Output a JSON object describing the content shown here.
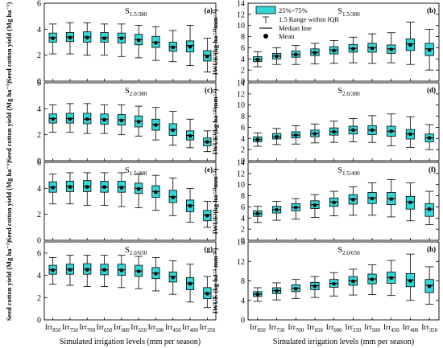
{
  "chart_data": [
    {
      "type": "box",
      "id": "a",
      "panel_label": "(a)",
      "scenario_label": "S",
      "scenario_sub": "1.5/380",
      "ylabel": "Seed cotton  yield  (Mg ha⁻¹)",
      "ylim": [
        0,
        6
      ],
      "yticks": [
        0,
        2,
        4,
        6
      ],
      "categories": [
        "Irr850",
        "Irr750",
        "Irr700",
        "Irr650",
        "Irr600",
        "Irr550",
        "Irr500",
        "Irr450",
        "Irr400",
        "Irr350"
      ],
      "boxes": [
        {
          "min": 2.1,
          "q1": 3.0,
          "median": 3.35,
          "q3": 3.7,
          "max": 4.4,
          "mean": 3.3
        },
        {
          "min": 2.1,
          "q1": 3.05,
          "median": 3.4,
          "q3": 3.75,
          "max": 4.5,
          "mean": 3.35
        },
        {
          "min": 2.0,
          "q1": 3.0,
          "median": 3.4,
          "q3": 3.8,
          "max": 4.5,
          "mean": 3.35
        },
        {
          "min": 2.0,
          "q1": 3.0,
          "median": 3.35,
          "q3": 3.75,
          "max": 4.4,
          "mean": 3.3
        },
        {
          "min": 1.9,
          "q1": 2.95,
          "median": 3.35,
          "q3": 3.7,
          "max": 4.4,
          "mean": 3.3
        },
        {
          "min": 1.8,
          "q1": 2.8,
          "median": 3.2,
          "q3": 3.6,
          "max": 4.3,
          "mean": 3.15
        },
        {
          "min": 1.6,
          "q1": 2.6,
          "median": 3.0,
          "q3": 3.45,
          "max": 4.2,
          "mean": 2.95
        },
        {
          "min": 1.5,
          "q1": 2.3,
          "median": 2.65,
          "q3": 3.0,
          "max": 3.9,
          "mean": 2.6
        },
        {
          "min": 1.2,
          "q1": 2.25,
          "median": 2.75,
          "q3": 3.1,
          "max": 4.3,
          "mean": 2.65
        },
        {
          "min": 0.7,
          "q1": 1.55,
          "median": 2.0,
          "q3": 2.35,
          "max": 3.3,
          "mean": 1.9
        }
      ]
    },
    {
      "type": "box",
      "id": "b",
      "panel_label": "(b)",
      "scenario_label": "S",
      "scenario_sub": "1.5/380",
      "ylabel": "IWUE  (kg ha⁻¹ mm⁻¹)",
      "ylim": [
        0,
        14
      ],
      "yticks": [
        0,
        2,
        4,
        6,
        8,
        10,
        12,
        14
      ],
      "categories": [
        "Irr850",
        "Irr750",
        "Irr700",
        "Irr650",
        "Irr600",
        "Irr550",
        "Irr500",
        "Irr450",
        "Irr400",
        "Irr350"
      ],
      "boxes": [
        {
          "min": 2.6,
          "q1": 3.5,
          "median": 3.9,
          "q3": 4.4,
          "max": 5.3,
          "mean": 3.9
        },
        {
          "min": 3.0,
          "q1": 4.0,
          "median": 4.5,
          "q3": 5.0,
          "max": 6.0,
          "mean": 4.5
        },
        {
          "min": 3.0,
          "q1": 4.3,
          "median": 4.8,
          "q3": 5.4,
          "max": 6.4,
          "mean": 4.8
        },
        {
          "min": 3.1,
          "q1": 4.6,
          "median": 5.2,
          "q3": 5.8,
          "max": 6.8,
          "mean": 5.1
        },
        {
          "min": 3.2,
          "q1": 4.9,
          "median": 5.6,
          "q3": 6.2,
          "max": 7.3,
          "mean": 5.5
        },
        {
          "min": 3.3,
          "q1": 5.2,
          "median": 5.9,
          "q3": 6.6,
          "max": 7.9,
          "mean": 5.8
        },
        {
          "min": 3.2,
          "q1": 5.2,
          "median": 6.0,
          "q3": 6.8,
          "max": 8.5,
          "mean": 5.9
        },
        {
          "min": 3.3,
          "q1": 5.0,
          "median": 5.8,
          "q3": 6.5,
          "max": 8.7,
          "mean": 5.7
        },
        {
          "min": 3.0,
          "q1": 5.5,
          "median": 6.7,
          "q3": 7.6,
          "max": 10.6,
          "mean": 6.5
        },
        {
          "min": 2.0,
          "q1": 4.6,
          "median": 5.8,
          "q3": 6.8,
          "max": 9.3,
          "mean": 5.6
        }
      ]
    },
    {
      "type": "box",
      "id": "c",
      "panel_label": "(c)",
      "scenario_label": "S",
      "scenario_sub": "2.0/380",
      "ylabel": "Seed cotton  yield  (Mg ha⁻¹)",
      "ylim": [
        0,
        6
      ],
      "yticks": [
        0,
        2,
        4,
        6
      ],
      "categories": [
        "Irr850",
        "Irr750",
        "Irr700",
        "Irr650",
        "Irr600",
        "Irr550",
        "Irr500",
        "Irr450",
        "Irr400",
        "Irr350"
      ],
      "boxes": [
        {
          "min": 2.2,
          "q1": 2.9,
          "median": 3.25,
          "q3": 3.6,
          "max": 4.3,
          "mean": 3.2
        },
        {
          "min": 2.2,
          "q1": 2.9,
          "median": 3.25,
          "q3": 3.65,
          "max": 4.4,
          "mean": 3.2
        },
        {
          "min": 2.1,
          "q1": 2.85,
          "median": 3.2,
          "q3": 3.65,
          "max": 4.4,
          "mean": 3.2
        },
        {
          "min": 2.1,
          "q1": 2.8,
          "median": 3.2,
          "q3": 3.6,
          "max": 4.3,
          "mean": 3.15
        },
        {
          "min": 2.0,
          "q1": 2.75,
          "median": 3.15,
          "q3": 3.55,
          "max": 4.3,
          "mean": 3.1
        },
        {
          "min": 1.9,
          "q1": 2.6,
          "median": 3.05,
          "q3": 3.45,
          "max": 4.2,
          "mean": 3.0
        },
        {
          "min": 1.6,
          "q1": 2.35,
          "median": 2.8,
          "q3": 3.2,
          "max": 4.1,
          "mean": 2.75
        },
        {
          "min": 1.2,
          "q1": 1.95,
          "median": 2.4,
          "q3": 2.85,
          "max": 3.8,
          "mean": 2.35
        },
        {
          "min": 1.0,
          "q1": 1.6,
          "median": 1.95,
          "q3": 2.3,
          "max": 3.2,
          "mean": 1.9
        },
        {
          "min": 0.7,
          "q1": 1.15,
          "median": 1.45,
          "q3": 1.75,
          "max": 2.3,
          "mean": 1.45
        }
      ]
    },
    {
      "type": "box",
      "id": "d",
      "panel_label": "(d)",
      "scenario_label": "S",
      "scenario_sub": "2.0/380",
      "ylabel": "IWUE  (kg ha⁻¹ mm⁻¹)",
      "ylim": [
        0,
        14
      ],
      "yticks": [
        0,
        2,
        4,
        6,
        8,
        10,
        12,
        14
      ],
      "categories": [
        "Irr850",
        "Irr750",
        "Irr700",
        "Irr650",
        "Irr600",
        "Irr550",
        "Irr500",
        "Irr450",
        "Irr400",
        "Irr350"
      ],
      "boxes": [
        {
          "min": 2.6,
          "q1": 3.4,
          "median": 3.8,
          "q3": 4.3,
          "max": 5.0,
          "mean": 3.8
        },
        {
          "min": 2.9,
          "q1": 3.9,
          "median": 4.3,
          "q3": 4.9,
          "max": 5.8,
          "mean": 4.3
        },
        {
          "min": 3.0,
          "q1": 4.1,
          "median": 4.6,
          "q3": 5.2,
          "max": 6.3,
          "mean": 4.6
        },
        {
          "min": 3.2,
          "q1": 4.3,
          "median": 4.9,
          "q3": 5.5,
          "max": 6.6,
          "mean": 4.85
        },
        {
          "min": 3.3,
          "q1": 4.6,
          "median": 5.2,
          "q3": 5.9,
          "max": 7.1,
          "mean": 5.2
        },
        {
          "min": 3.4,
          "q1": 4.8,
          "median": 5.5,
          "q3": 6.2,
          "max": 7.6,
          "mean": 5.5
        },
        {
          "min": 3.3,
          "q1": 4.7,
          "median": 5.5,
          "q3": 6.3,
          "max": 8.1,
          "mean": 5.5
        },
        {
          "min": 2.7,
          "q1": 4.4,
          "median": 5.3,
          "q3": 6.2,
          "max": 8.4,
          "mean": 5.3
        },
        {
          "min": 2.4,
          "q1": 3.9,
          "median": 4.8,
          "q3": 5.6,
          "max": 7.9,
          "mean": 4.8
        },
        {
          "min": 2.0,
          "q1": 3.4,
          "median": 4.1,
          "q3": 4.8,
          "max": 6.5,
          "mean": 4.1
        }
      ]
    },
    {
      "type": "box",
      "id": "e",
      "panel_label": "(e)",
      "scenario_label": "S",
      "scenario_sub": "1.5/490",
      "ylabel": "Seed cotton  yield  (Mg ha⁻¹)",
      "ylim": [
        0,
        6
      ],
      "yticks": [
        0,
        2,
        4,
        6
      ],
      "categories": [
        "Irr850",
        "Irr750",
        "Irr700",
        "Irr650",
        "Irr600",
        "Irr550",
        "Irr500",
        "Irr450",
        "Irr400",
        "Irr350"
      ],
      "boxes": [
        {
          "min": 2.8,
          "q1": 3.7,
          "median": 4.1,
          "q3": 4.5,
          "max": 5.1,
          "mean": 4.05
        },
        {
          "min": 2.8,
          "q1": 3.75,
          "median": 4.15,
          "q3": 4.55,
          "max": 5.2,
          "mean": 4.1
        },
        {
          "min": 2.7,
          "q1": 3.75,
          "median": 4.15,
          "q3": 4.6,
          "max": 5.2,
          "mean": 4.1
        },
        {
          "min": 2.7,
          "q1": 3.7,
          "median": 4.1,
          "q3": 4.55,
          "max": 5.2,
          "mean": 4.1
        },
        {
          "min": 2.6,
          "q1": 3.7,
          "median": 4.1,
          "q3": 4.55,
          "max": 5.2,
          "mean": 4.05
        },
        {
          "min": 2.5,
          "q1": 3.6,
          "median": 4.0,
          "q3": 4.4,
          "max": 5.1,
          "mean": 3.95
        },
        {
          "min": 2.3,
          "q1": 3.3,
          "median": 3.75,
          "q3": 4.2,
          "max": 5.0,
          "mean": 3.7
        },
        {
          "min": 1.9,
          "q1": 2.9,
          "median": 3.35,
          "q3": 3.85,
          "max": 4.8,
          "mean": 3.3
        },
        {
          "min": 1.4,
          "q1": 2.2,
          "median": 2.7,
          "q3": 3.1,
          "max": 4.0,
          "mean": 2.65
        },
        {
          "min": 1.0,
          "q1": 1.5,
          "median": 1.95,
          "q3": 2.3,
          "max": 3.0,
          "mean": 1.9
        }
      ]
    },
    {
      "type": "box",
      "id": "f",
      "panel_label": "(f)",
      "scenario_label": "S",
      "scenario_sub": "1.5/490",
      "ylabel": "IWUE  (kg ha⁻¹ mm⁻¹)",
      "ylim": [
        0,
        14
      ],
      "yticks": [
        0,
        2,
        4,
        6,
        8,
        10,
        12,
        14
      ],
      "categories": [
        "Irr850",
        "Irr750",
        "Irr700",
        "Irr650",
        "Irr600",
        "Irr550",
        "Irr500",
        "Irr450",
        "Irr400",
        "Irr350"
      ],
      "boxes": [
        {
          "min": 3.2,
          "q1": 4.3,
          "median": 4.8,
          "q3": 5.3,
          "max": 6.1,
          "mean": 4.8
        },
        {
          "min": 3.6,
          "q1": 4.9,
          "median": 5.5,
          "q3": 6.1,
          "max": 7.0,
          "mean": 5.5
        },
        {
          "min": 3.8,
          "q1": 5.3,
          "median": 5.9,
          "q3": 6.6,
          "max": 7.5,
          "mean": 5.9
        },
        {
          "min": 4.1,
          "q1": 5.7,
          "median": 6.4,
          "q3": 7.1,
          "max": 8.2,
          "mean": 6.3
        },
        {
          "min": 4.4,
          "q1": 6.1,
          "median": 6.9,
          "q3": 7.6,
          "max": 8.8,
          "mean": 6.8
        },
        {
          "min": 4.5,
          "q1": 6.5,
          "median": 7.4,
          "q3": 8.2,
          "max": 9.6,
          "mean": 7.3
        },
        {
          "min": 4.5,
          "q1": 6.6,
          "median": 7.6,
          "q3": 8.6,
          "max": 10.3,
          "mean": 7.5
        },
        {
          "min": 4.2,
          "q1": 6.4,
          "median": 7.5,
          "q3": 8.6,
          "max": 10.9,
          "mean": 7.4
        },
        {
          "min": 3.5,
          "q1": 5.6,
          "median": 6.9,
          "q3": 7.9,
          "max": 10.3,
          "mean": 6.8
        },
        {
          "min": 2.8,
          "q1": 4.3,
          "median": 5.6,
          "q3": 6.6,
          "max": 8.8,
          "mean": 5.6
        }
      ]
    },
    {
      "type": "box",
      "id": "g",
      "panel_label": "(g)",
      "scenario_label": "S",
      "scenario_sub": "2.0/650",
      "ylabel": "Seed cotton  yield  (Mg ha⁻¹)",
      "ylim": [
        0,
        7
      ],
      "yticks": [
        0,
        2,
        4,
        6
      ],
      "categories": [
        "Irr850",
        "Irr750",
        "Irr700",
        "Irr650",
        "Irr600",
        "Irr550",
        "Irr500",
        "Irr450",
        "Irr400",
        "Irr350"
      ],
      "boxes": [
        {
          "min": 3.2,
          "q1": 4.1,
          "median": 4.5,
          "q3": 4.9,
          "max": 5.6,
          "mean": 4.45
        },
        {
          "min": 3.1,
          "q1": 4.1,
          "median": 4.55,
          "q3": 5.0,
          "max": 5.8,
          "mean": 4.5
        },
        {
          "min": 3.0,
          "q1": 4.1,
          "median": 4.55,
          "q3": 5.05,
          "max": 5.8,
          "mean": 4.5
        },
        {
          "min": 3.0,
          "q1": 4.05,
          "median": 4.5,
          "q3": 5.0,
          "max": 5.8,
          "mean": 4.5
        },
        {
          "min": 2.9,
          "q1": 4.0,
          "median": 4.5,
          "q3": 5.0,
          "max": 5.8,
          "mean": 4.45
        },
        {
          "min": 2.8,
          "q1": 3.9,
          "median": 4.4,
          "q3": 4.9,
          "max": 5.7,
          "mean": 4.35
        },
        {
          "min": 2.6,
          "q1": 3.7,
          "median": 4.2,
          "q3": 4.7,
          "max": 5.6,
          "mean": 4.15
        },
        {
          "min": 2.3,
          "q1": 3.4,
          "median": 3.9,
          "q3": 4.3,
          "max": 5.3,
          "mean": 3.8
        },
        {
          "min": 1.6,
          "q1": 2.7,
          "median": 3.3,
          "q3": 3.8,
          "max": 5.0,
          "mean": 3.25
        },
        {
          "min": 1.1,
          "q1": 1.9,
          "median": 2.4,
          "q3": 2.9,
          "max": 3.9,
          "mean": 2.35
        }
      ]
    },
    {
      "type": "box",
      "id": "h",
      "panel_label": "(h)",
      "scenario_label": "S",
      "scenario_sub": "2.0/650",
      "ylabel": "IWUE  (kg ha⁻¹ mm⁻¹)",
      "ylim": [
        0,
        16
      ],
      "yticks": [
        0,
        4,
        8,
        12,
        16
      ],
      "categories": [
        "Irr850",
        "Irr750",
        "Irr700",
        "Irr650",
        "Irr600",
        "Irr550",
        "Irr500",
        "Irr450",
        "Irr400",
        "Irr350"
      ],
      "boxes": [
        {
          "min": 3.8,
          "q1": 4.8,
          "median": 5.3,
          "q3": 5.8,
          "max": 6.6,
          "mean": 5.25
        },
        {
          "min": 4.1,
          "q1": 5.4,
          "median": 6.0,
          "q3": 6.6,
          "max": 7.6,
          "mean": 5.95
        },
        {
          "min": 4.4,
          "q1": 5.8,
          "median": 6.5,
          "q3": 7.2,
          "max": 8.3,
          "mean": 6.4
        },
        {
          "min": 4.6,
          "q1": 6.2,
          "median": 7.0,
          "q3": 7.7,
          "max": 8.9,
          "mean": 6.9
        },
        {
          "min": 4.9,
          "q1": 6.7,
          "median": 7.5,
          "q3": 8.3,
          "max": 9.7,
          "mean": 7.4
        },
        {
          "min": 5.1,
          "q1": 7.1,
          "median": 8.0,
          "q3": 8.9,
          "max": 10.4,
          "mean": 7.9
        },
        {
          "min": 5.2,
          "q1": 7.4,
          "median": 8.4,
          "q3": 9.4,
          "max": 11.3,
          "mean": 8.3
        },
        {
          "min": 5.0,
          "q1": 7.5,
          "median": 8.7,
          "q3": 9.8,
          "max": 12.2,
          "mean": 8.6
        },
        {
          "min": 4.0,
          "q1": 6.8,
          "median": 8.2,
          "q3": 9.5,
          "max": 13.5,
          "mean": 8.0
        },
        {
          "min": 3.2,
          "q1": 5.6,
          "median": 7.1,
          "q3": 8.3,
          "max": 10.9,
          "mean": 6.9
        }
      ]
    }
  ],
  "legend": {
    "items": [
      "25%~75%",
      "1.5 Range within IQR",
      "Median line",
      "Mean"
    ]
  },
  "xtick_labels": [
    {
      "base": "Irr",
      "sub": "850"
    },
    {
      "base": "Irr",
      "sub": "750"
    },
    {
      "base": "Irr",
      "sub": "700"
    },
    {
      "base": "Irr",
      "sub": "650"
    },
    {
      "base": "Irr",
      "sub": "600"
    },
    {
      "base": "Irr",
      "sub": "550"
    },
    {
      "base": "Irr",
      "sub": "500"
    },
    {
      "base": "Irr",
      "sub": "450"
    },
    {
      "base": "Irr",
      "sub": "400"
    },
    {
      "base": "Irr",
      "sub": "350"
    }
  ],
  "xlabel_left": "Simulated irrigation levels (mm per season)",
  "xlabel_right": "Simulated irrigation levels (mm per season)",
  "colors": {
    "box_fill": "#33d6d6",
    "line": "#000000",
    "background": "#ffffff"
  }
}
